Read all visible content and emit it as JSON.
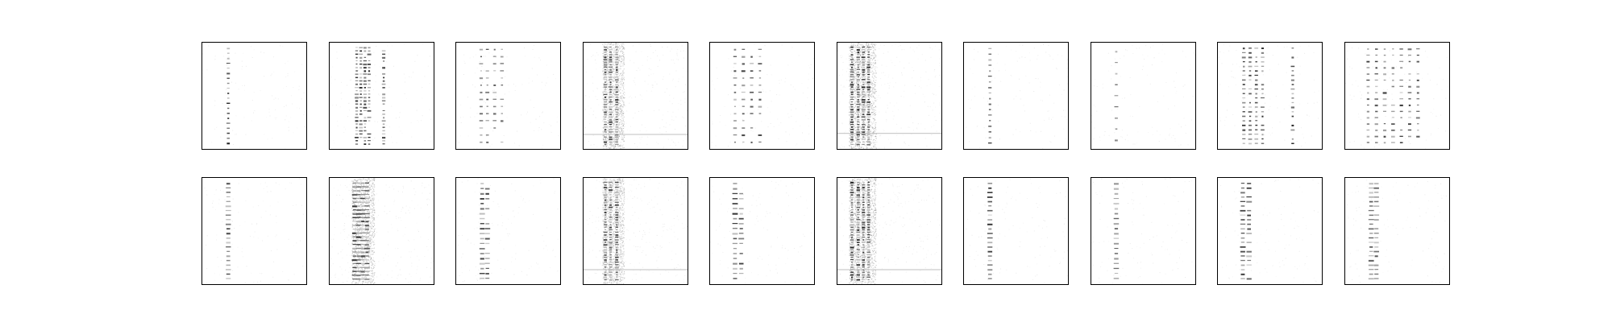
{
  "chart_data": {
    "type": "heatmap",
    "grid": {
      "rows": 2,
      "cols": 10
    },
    "axes_visible": false,
    "colormap": "Greys",
    "background_color": "#ffffff",
    "frame_color": "#000000",
    "panels": [
      {
        "row": 0,
        "col": 0,
        "pattern": "sparse",
        "columns": [
          0.25
        ],
        "rows": 20,
        "intensity": 0.85,
        "diffuse": false
      },
      {
        "row": 0,
        "col": 1,
        "pattern": "dense-cluster",
        "columns": [
          0.26,
          0.3,
          0.34,
          0.38,
          0.52
        ],
        "rows": 30,
        "intensity": 0.8,
        "diffuse": false
      },
      {
        "row": 0,
        "col": 2,
        "pattern": "sparse",
        "columns": [
          0.24,
          0.3,
          0.37,
          0.44
        ],
        "rows": 14,
        "intensity": 0.6,
        "diffuse": false
      },
      {
        "row": 0,
        "col": 3,
        "pattern": "diffuse-band",
        "columns": [
          0.21,
          0.26,
          0.32
        ],
        "rows": 40,
        "intensity": 0.75,
        "diffuse": true,
        "horizontal_line": 0.86
      },
      {
        "row": 0,
        "col": 4,
        "pattern": "sparse",
        "columns": [
          0.24,
          0.32,
          0.4,
          0.48
        ],
        "rows": 14,
        "intensity": 0.7,
        "diffuse": false
      },
      {
        "row": 0,
        "col": 5,
        "pattern": "diffuse-band",
        "columns": [
          0.14,
          0.2,
          0.25,
          0.3
        ],
        "rows": 40,
        "intensity": 0.85,
        "diffuse": true,
        "horizontal_line": 0.85
      },
      {
        "row": 0,
        "col": 6,
        "pattern": "sparse",
        "columns": [
          0.25
        ],
        "rows": 18,
        "intensity": 0.75,
        "diffuse": false
      },
      {
        "row": 0,
        "col": 7,
        "pattern": "sparse",
        "columns": [
          0.24
        ],
        "rows": 9,
        "intensity": 0.6,
        "diffuse": false
      },
      {
        "row": 0,
        "col": 8,
        "pattern": "dense-cluster",
        "columns": [
          0.25,
          0.31,
          0.37,
          0.43,
          0.72
        ],
        "rows": 22,
        "intensity": 0.8,
        "diffuse": false
      },
      {
        "row": 0,
        "col": 9,
        "pattern": "dense-cluster",
        "columns": [
          0.22,
          0.3,
          0.38,
          0.46,
          0.54,
          0.62,
          0.7
        ],
        "rows": 16,
        "intensity": 0.7,
        "diffuse": false
      },
      {
        "row": 1,
        "col": 0,
        "pattern": "ladder",
        "columns": [
          0.25
        ],
        "rows": 22,
        "intensity": 0.8,
        "diffuse": false
      },
      {
        "row": 1,
        "col": 1,
        "pattern": "ladder-wide",
        "columns": [
          0.24,
          0.28,
          0.32,
          0.36
        ],
        "rows": 26,
        "intensity": 0.75,
        "diffuse": true
      },
      {
        "row": 1,
        "col": 2,
        "pattern": "ladder",
        "columns": [
          0.25,
          0.3
        ],
        "rows": 20,
        "intensity": 0.75,
        "diffuse": false
      },
      {
        "row": 1,
        "col": 3,
        "pattern": "diffuse-band",
        "columns": [
          0.21,
          0.26,
          0.32
        ],
        "rows": 40,
        "intensity": 0.7,
        "diffuse": true,
        "horizontal_line": 0.86
      },
      {
        "row": 1,
        "col": 4,
        "pattern": "ladder",
        "columns": [
          0.24,
          0.3
        ],
        "rows": 20,
        "intensity": 0.75,
        "diffuse": false
      },
      {
        "row": 1,
        "col": 5,
        "pattern": "diffuse-band",
        "columns": [
          0.14,
          0.2,
          0.25,
          0.3
        ],
        "rows": 40,
        "intensity": 0.8,
        "diffuse": true,
        "horizontal_line": 0.86
      },
      {
        "row": 1,
        "col": 6,
        "pattern": "ladder",
        "columns": [
          0.25
        ],
        "rows": 22,
        "intensity": 0.8,
        "diffuse": false
      },
      {
        "row": 1,
        "col": 7,
        "pattern": "ladder",
        "columns": [
          0.24
        ],
        "rows": 20,
        "intensity": 0.55,
        "diffuse": false
      },
      {
        "row": 1,
        "col": 8,
        "pattern": "ladder",
        "columns": [
          0.24,
          0.3
        ],
        "rows": 22,
        "intensity": 0.7,
        "diffuse": false
      },
      {
        "row": 1,
        "col": 9,
        "pattern": "ladder",
        "columns": [
          0.25,
          0.3
        ],
        "rows": 22,
        "intensity": 0.6,
        "diffuse": false
      }
    ]
  }
}
